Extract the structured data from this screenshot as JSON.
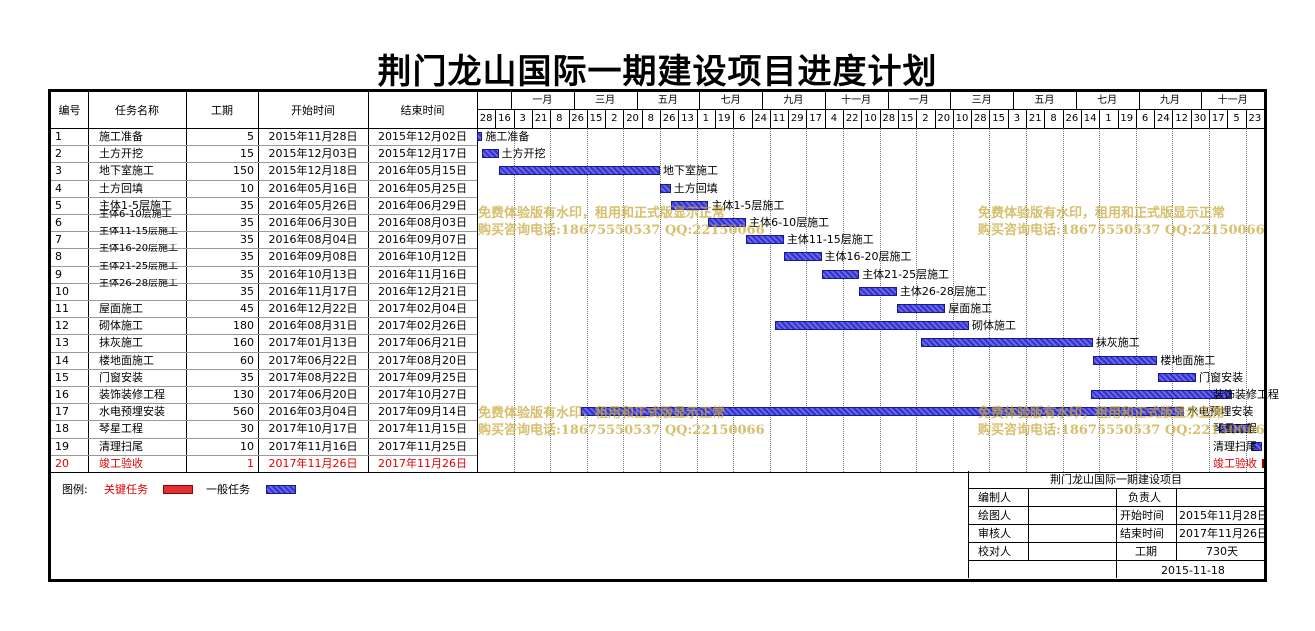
{
  "title": "荆门龙山国际一期建设项目进度计划",
  "columns": {
    "no": "编号",
    "name": "任务名称",
    "duration": "工期",
    "start": "开始时间",
    "end": "结束时间"
  },
  "timeline": {
    "months": [
      "一月",
      "三月",
      "五月",
      "七月",
      "九月",
      "十一月",
      "一月",
      "三月",
      "五月",
      "七月",
      "九月",
      "十一月"
    ],
    "days": [
      "28",
      "16",
      "3",
      "21",
      "8",
      "26",
      "15",
      "2",
      "20",
      "8",
      "26",
      "13",
      "1",
      "19",
      "6",
      "24",
      "11",
      "29",
      "17",
      "4",
      "22",
      "10",
      "28",
      "15",
      "2",
      "20",
      "10",
      "28",
      "15",
      "3",
      "21",
      "8",
      "26",
      "14",
      "1",
      "19",
      "6",
      "24",
      "12",
      "30",
      "17",
      "5",
      "23"
    ]
  },
  "chart_data": {
    "type": "gantt",
    "tasks": [
      {
        "no": "1",
        "name": "施工准备",
        "duration": 5,
        "start": "2015年11月28日",
        "end": "2015年12月02日",
        "critical": false
      },
      {
        "no": "2",
        "name": "土方开挖",
        "duration": 15,
        "start": "2015年12月03日",
        "end": "2015年12月17日",
        "critical": false
      },
      {
        "no": "3",
        "name": "地下室施工",
        "duration": 150,
        "start": "2015年12月18日",
        "end": "2016年05月15日",
        "critical": false
      },
      {
        "no": "4",
        "name": "土方回填",
        "duration": 10,
        "start": "2016年05月16日",
        "end": "2016年05月25日",
        "critical": false
      },
      {
        "no": "5",
        "name": "主体1-5层施工",
        "duration": 35,
        "start": "2016年05月26日",
        "end": "2016年06月29日",
        "critical": false
      },
      {
        "no": "6",
        "name": "主体6-10层施工",
        "duration": 35,
        "start": "2016年06月30日",
        "end": "2016年08月03日",
        "critical": false
      },
      {
        "no": "7",
        "name": "主体11-15层施工",
        "duration": 35,
        "start": "2016年08月04日",
        "end": "2016年09月07日",
        "critical": false
      },
      {
        "no": "8",
        "name": "主体16-20层施工",
        "duration": 35,
        "start": "2016年09月08日",
        "end": "2016年10月12日",
        "critical": false
      },
      {
        "no": "9",
        "name": "主体21-25层施工",
        "duration": 35,
        "start": "2016年10月13日",
        "end": "2016年11月16日",
        "critical": false
      },
      {
        "no": "10",
        "name": "主体26-28层施工",
        "duration": 35,
        "start": "2016年11月17日",
        "end": "2016年12月21日",
        "critical": false
      },
      {
        "no": "11",
        "name": "屋面施工",
        "duration": 45,
        "start": "2016年12月22日",
        "end": "2017年02月04日",
        "critical": false
      },
      {
        "no": "12",
        "name": "砌体施工",
        "duration": 180,
        "start": "2016年08月31日",
        "end": "2017年02月26日",
        "critical": false
      },
      {
        "no": "13",
        "name": "抹灰施工",
        "duration": 160,
        "start": "2017年01月13日",
        "end": "2017年06月21日",
        "critical": false
      },
      {
        "no": "14",
        "name": "楼地面施工",
        "duration": 60,
        "start": "2017年06月22日",
        "end": "2017年08月20日",
        "critical": false
      },
      {
        "no": "15",
        "name": "门窗安装",
        "duration": 35,
        "start": "2017年08月22日",
        "end": "2017年09月25日",
        "critical": false
      },
      {
        "no": "16",
        "name": "装饰装修工程",
        "duration": 130,
        "start": "2017年06月20日",
        "end": "2017年10月27日",
        "critical": false
      },
      {
        "no": "17",
        "name": "水电预埋安装",
        "duration": 560,
        "start": "2016年03月04日",
        "end": "2017年09月14日",
        "critical": false
      },
      {
        "no": "18",
        "name": "琴星工程",
        "duration": 30,
        "start": "2017年10月17日",
        "end": "2017年11月15日",
        "critical": false
      },
      {
        "no": "19",
        "name": "清理扫尾",
        "duration": 10,
        "start": "2017年11月16日",
        "end": "2017年11月25日",
        "critical": false
      },
      {
        "no": "20",
        "name": "竣工验收",
        "duration": 1,
        "start": "2017年11月26日",
        "end": "2017年11月26日",
        "critical": true
      }
    ]
  },
  "watermark": {
    "line1": "免费体验版有水印，租用和正式版显示正常",
    "line2": "购买咨询电话:18675550537 QQ:22150066"
  },
  "legend": {
    "label": "图例:",
    "critical": "关键任务",
    "normal": "一般任务",
    "critical_color": "#e03030",
    "normal_color": "#3333cc"
  },
  "info": {
    "project": "荆门龙山国际一期建设项目",
    "editor_label": "编制人",
    "editor": "",
    "drawer_label": "绘图人",
    "drawer": "",
    "reviewer_label": "审核人",
    "reviewer": "",
    "checker_label": "校对人",
    "checker": "",
    "owner_label": "负责人",
    "owner": "",
    "start_label": "开始时间",
    "start": "2015年11月28日",
    "end_label": "结束时间",
    "end": "2017年11月26日",
    "duration_label": "工期",
    "duration": "730天",
    "date": "2015-11-18"
  }
}
